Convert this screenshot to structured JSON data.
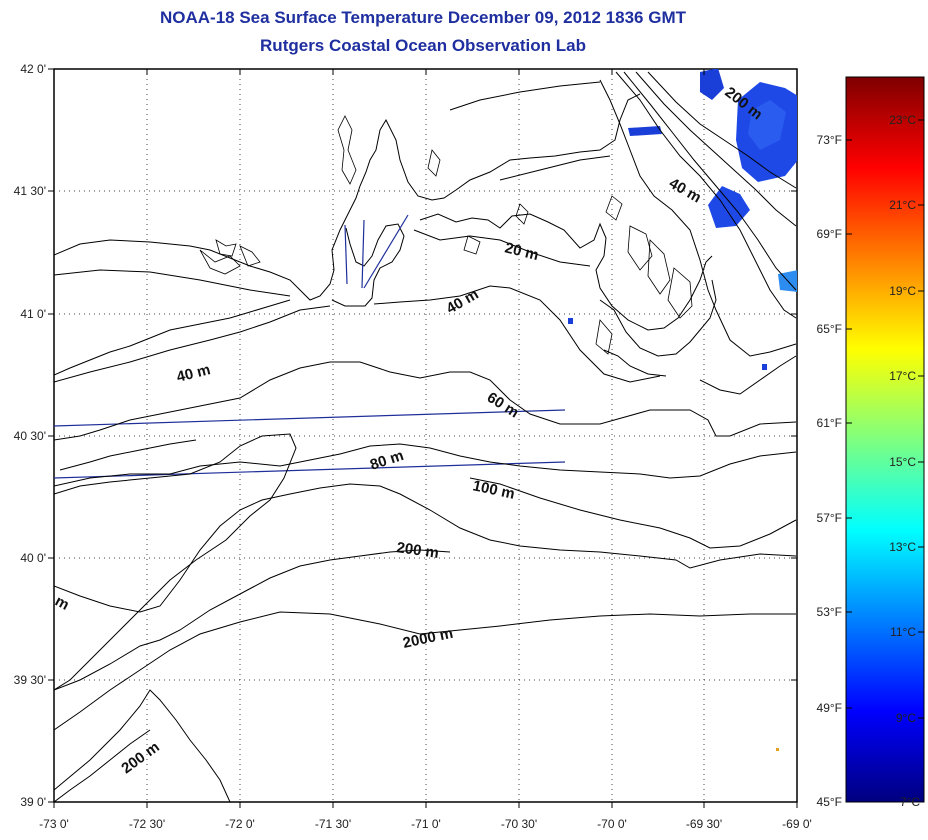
{
  "title": "NOAA-18 Sea Surface Temperature December 09, 2012 1836 GMT",
  "subtitle": "Rutgers Coastal Ocean Observation Lab",
  "map": {
    "lon_ticks": [
      "-73 0'",
      "-72 30'",
      "-72 0'",
      "-71 30'",
      "-71 0'",
      "-70 30'",
      "-70 0'",
      "-69 30'",
      "-69 0'"
    ],
    "lat_ticks": [
      "42 0'",
      "41 30'",
      "41 0'",
      "40 30'",
      "40 0'",
      "39 30'",
      "39 0'"
    ],
    "contour_labels": [
      "200 m",
      "40 m",
      "20 m",
      "40 m",
      "40 m",
      "60 m",
      "80 m",
      "100 m",
      "200 m",
      "2000 m",
      "200 m",
      "m"
    ],
    "land_color": "#ffffff",
    "line_color": "#000000",
    "transect_color": "#1f2f9a"
  },
  "colorbar": {
    "fahrenheit": [
      "73°F",
      "69°F",
      "65°F",
      "61°F",
      "57°F",
      "53°F",
      "49°F",
      "45°F"
    ],
    "celsius": [
      "23°C",
      "21°C",
      "19°C",
      "17°C",
      "15°C",
      "13°C",
      "11°C",
      "9°C",
      "7°C"
    ],
    "gradient": [
      "#00007f",
      "#0000ff",
      "#007fff",
      "#00ffff",
      "#7fff7f",
      "#ffff00",
      "#ff7f00",
      "#ff0000",
      "#7f0000"
    ]
  }
}
